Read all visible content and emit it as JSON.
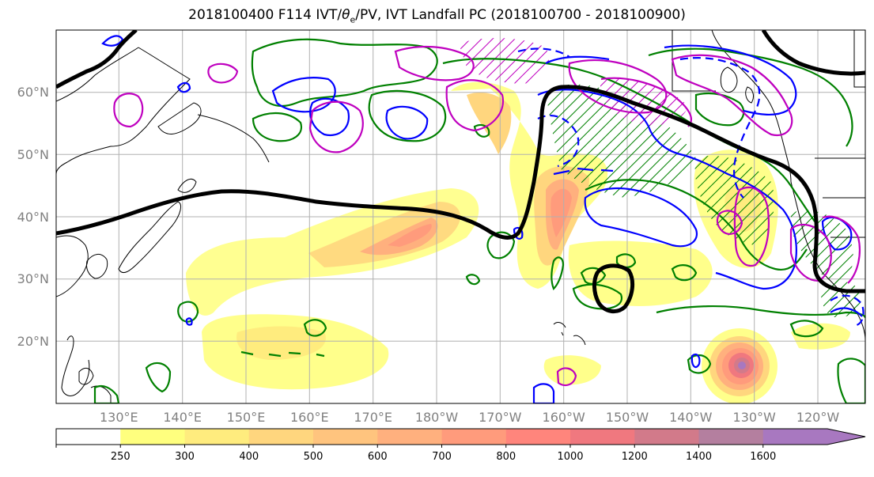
{
  "title": {
    "main": "2018100400 F114 IVT/",
    "theta": "θ",
    "sub": "e",
    "rest": "/PV, IVT Landfall PC (2018100700 - 2018100900)"
  },
  "map": {
    "projection": "PlateCarree",
    "lat_range": [
      10,
      70
    ],
    "lon_range": [
      120,
      250
    ],
    "lat_labels": [
      "20°N",
      "30°N",
      "40°N",
      "50°N",
      "60°N"
    ],
    "lon_labels": [
      "130°E",
      "140°E",
      "150°E",
      "160°E",
      "170°E",
      "180°W",
      "170°W",
      "160°W",
      "150°W",
      "140°W",
      "130°W",
      "120°W"
    ],
    "gridlines": true
  },
  "colorbar": {
    "variable": "IVT",
    "bounds": [
      0,
      250,
      300,
      400,
      500,
      600,
      700,
      800,
      1000,
      1200,
      1400,
      1600,
      1800
    ],
    "tick_labels": [
      "250",
      "300",
      "400",
      "500",
      "600",
      "700",
      "800",
      "1000",
      "1200",
      "1400",
      "1600"
    ],
    "colors": [
      "#ffffff",
      "#ffff7e",
      "#ffec7e",
      "#ffd67e",
      "#ffc47e",
      "#ffb07e",
      "#ff9b7c",
      "#ff857c",
      "#f0787f",
      "#d27a8a",
      "#b47f9f",
      "#a878c0"
    ],
    "extend": "max"
  },
  "colors": {
    "theta_e_contour": "#008000",
    "pv_contour": "#0000ff",
    "composite_contour": "#bf00bf",
    "landfall_pc_line": "#000000",
    "coastline": "#000000",
    "grid": "#b0b0b0"
  }
}
